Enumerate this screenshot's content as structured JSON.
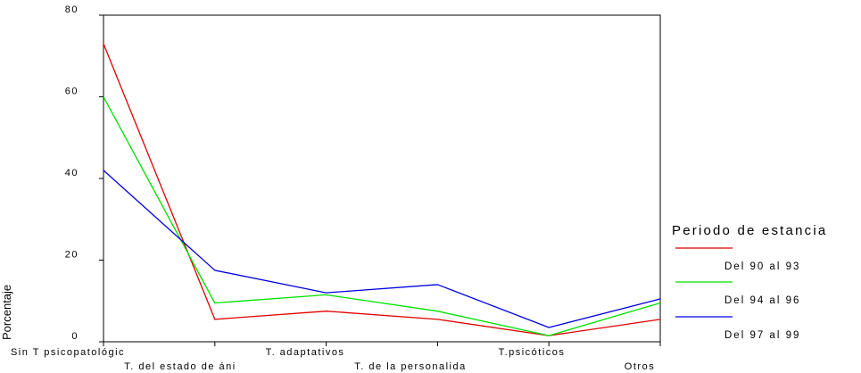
{
  "chart_data": {
    "type": "line",
    "ylabel": "Porcentaje",
    "xlabel": "",
    "ylim": [
      0,
      80
    ],
    "yticks": [
      0,
      20,
      40,
      60,
      80
    ],
    "grid": false,
    "legend_title": "Periodo de estancia",
    "legend_position": "right",
    "categories": [
      "Sin T psicopatológic",
      "T. del estado de áni",
      "T. adaptativos",
      "T. de la personalida",
      "T.psicóticos",
      "Otros"
    ],
    "series": [
      {
        "name": "Del 90 al 93",
        "color": "#e00000",
        "values": [
          73,
          5.5,
          7.5,
          5.5,
          1.5,
          5.5
        ]
      },
      {
        "name": "Del 94 al 96",
        "color": "#00e000",
        "values": [
          60,
          9.5,
          11.5,
          7.5,
          1.5,
          9.5
        ]
      },
      {
        "name": "Del 97 al 99",
        "color": "#0000e0",
        "values": [
          42,
          17.5,
          12,
          14,
          3.5,
          10.5
        ]
      }
    ]
  }
}
